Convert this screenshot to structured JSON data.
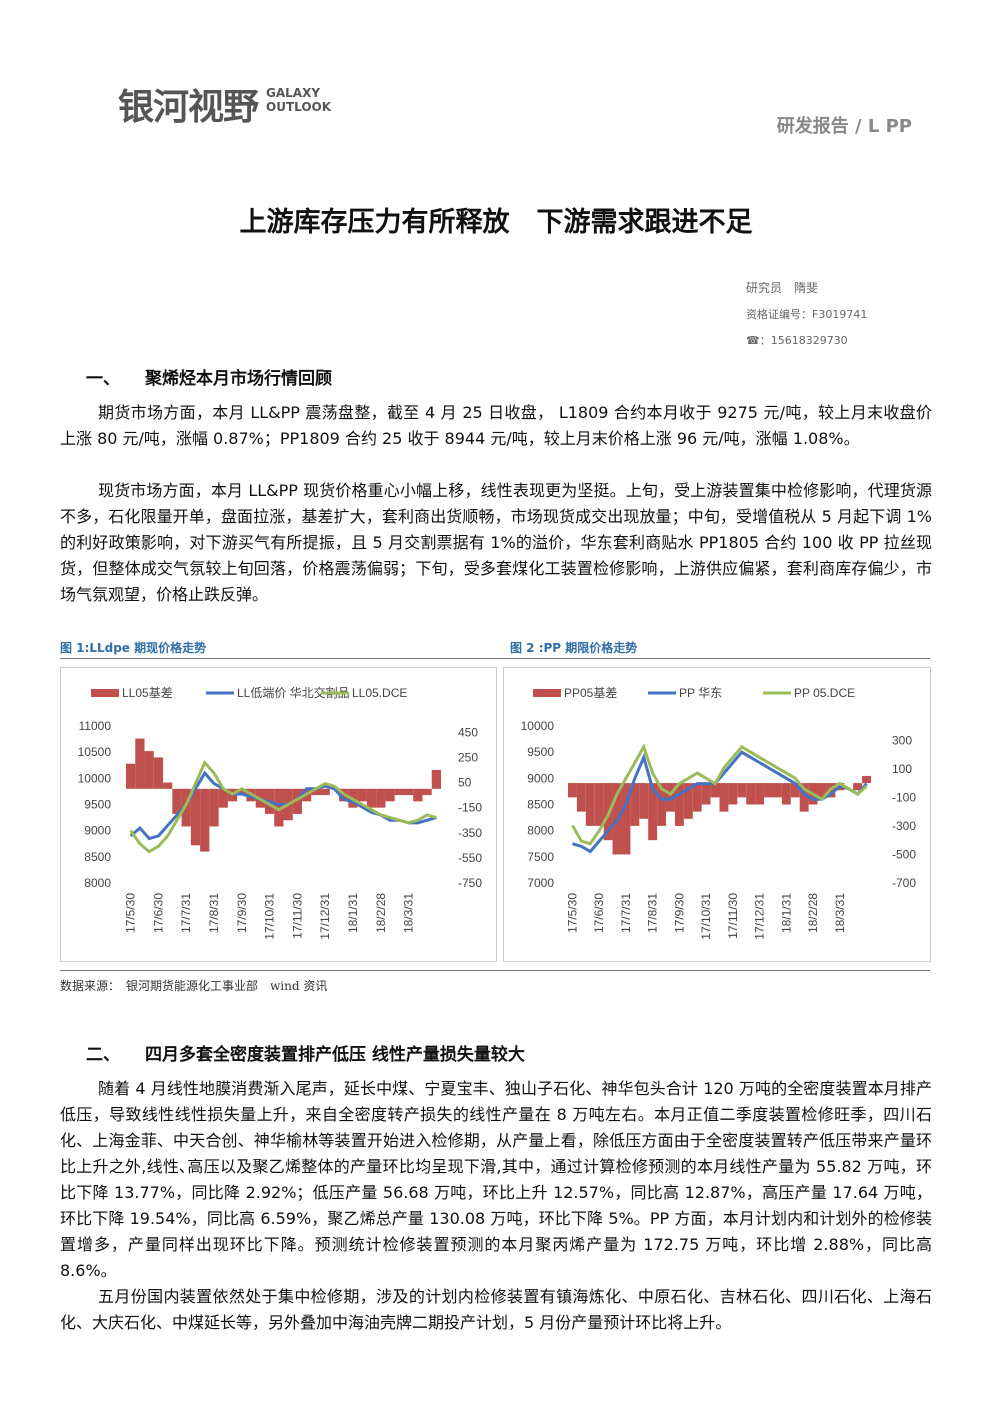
{
  "header": {
    "logo": "银河视野",
    "logo_en_1": "GALAXY",
    "logo_en_2": "OUTLOOK",
    "report_type": "研发报告 / L PP"
  },
  "title": "上游库存压力有所释放　下游需求跟进不足",
  "author": {
    "name": "研究员　隋斐",
    "license": "资格证编号：F3019741",
    "phone": "☎：15618329730"
  },
  "section1": {
    "number": "一、",
    "heading": "聚烯烃本月市场行情回顾",
    "paragraphs": [
      "期货市场方面，本月 LL&PP 震荡盘整，截至 4 月 25 日收盘， L1809 合约本月收于 9275 元/吨，较上月末收盘价上涨 80 元/吨，涨幅 0.87%；PP1809 合约 25 收于 8944 元/吨，较上月末价格上涨 96 元/吨，涨幅 1.08%。",
      "现货市场方面，本月 LL&PP 现货价格重心小幅上移，线性表现更为坚挺。上旬，受上游装置集中检修影响，代理货源不多，石化限量开单，盘面拉涨，基差扩大，套利商出货顺畅，市场现货成交出现放量；中旬，受增值税从 5 月起下调 1%的利好政策影响，对下游买气有所提振，且 5 月交割票据有 1%的溢价，华东套利商贴水 PP1805 合约 100 收 PP 拉丝现货，但整体成交气氛较上旬回落，价格震荡偏弱；下旬，受多套煤化工装置检修影响，上游供应偏紧，套利商库存偏少，市场气氛观望，价格止跌反弹。"
    ]
  },
  "figure_captions": [
    "图 1:LLdpe 期现价格走势",
    "图 2 :PP 期限价格走势"
  ],
  "source": "数据来源：　银河期货能源化工事业部　wind 资讯",
  "section2": {
    "number": "二、",
    "heading": "四月多套全密度装置排产低压 线性产量损失量较大",
    "paragraphs": [
      "随着 4 月线性地膜消费渐入尾声，延长中煤、宁夏宝丰、独山子石化、神华包头合计 120 万吨的全密度装置本月排产低压，导致线性线性损失量上升，来自全密度转产损失的线性产量在 8 万吨左右。本月正值二季度装置检修旺季，四川石化、上海金菲、中天合创、神华榆林等装置开始进入检修期，从产量上看，除低压方面由于全密度装置转产低压带来产量环比上升之外,线性､高压以及聚乙烯整体的产量环比均呈现下滑,其中，通过计算检修预测的本月线性产量为 55.82 万吨，环比下降 13.77%，同比降 2.92%；低压产量 56.68 万吨，环比上升 12.57%，同比高 12.87%，高压产量 17.64 万吨，环比下降 19.54%，同比高 6.59%，聚乙烯总产量 130.08 万吨，环比下降 5%。PP 方面，本月计划内和计划外的检修装置增多，产量同样出现环比下降。预测统计检修装置预测的本月聚丙烯产量为 172.75 万吨，环比增 2.88%，同比高 8.6%。",
      "五月份国内装置依然处于集中检修期，涉及的计划内检修装置有镇海炼化、中原石化、吉林石化、四川石化、上海石化、大庆石化、中煤延长等，另外叠加中海油壳牌二期投产计划，5 月份产量预计环比将上升。"
    ]
  },
  "chart_data": [
    {
      "type": "bar-line",
      "categories": [
        "17/5/30",
        null,
        null,
        "17/6/30",
        null,
        null,
        "17/7/31",
        null,
        null,
        "17/8/31",
        null,
        null,
        "17/9/30",
        null,
        null,
        "17/10/31",
        null,
        null,
        "17/11/30",
        null,
        null,
        "17/12/31",
        null,
        null,
        "18/1/31",
        null,
        null,
        "18/2/28",
        null,
        null,
        "18/3/31",
        null,
        null,
        null
      ],
      "ylim": [
        8000,
        11000
      ],
      "yticks": [
        8000,
        8500,
        9000,
        9500,
        10000,
        10500,
        11000
      ],
      "y2lim": [
        -750,
        500
      ],
      "y2ticks": [
        -750,
        -550,
        -350,
        -150,
        50,
        250,
        450
      ],
      "series": [
        {
          "name": "LL05基差",
          "color": "#c0504d",
          "kind": "bar",
          "axis": "y2",
          "values": [
            200,
            400,
            300,
            250,
            50,
            -200,
            -300,
            -450,
            -500,
            -300,
            -150,
            -100,
            -50,
            -100,
            -150,
            -200,
            -300,
            -250,
            -200,
            -100,
            -50,
            -50,
            0,
            -100,
            -150,
            -100,
            -150,
            -150,
            -100,
            -50,
            -50,
            -100,
            -50,
            150
          ]
        },
        {
          "name": "LL低端价 华北交割品",
          "color": "#4472c4",
          "kind": "line",
          "values": [
            8900,
            9050,
            8850,
            8900,
            9100,
            9300,
            9500,
            9800,
            10100,
            9900,
            9800,
            9700,
            9700,
            9650,
            9600,
            9550,
            9500,
            9500,
            9600,
            9800,
            9800,
            9850,
            9800,
            9600,
            9550,
            9450,
            9350,
            9300,
            9200,
            9200,
            9150,
            9150,
            9200,
            9250
          ]
        },
        {
          "name": "LL05.DCE",
          "color": "#9bbb59",
          "kind": "line",
          "values": [
            9000,
            8750,
            8600,
            8700,
            8900,
            9200,
            9500,
            9900,
            10300,
            10100,
            9800,
            9700,
            9800,
            9700,
            9600,
            9500,
            9400,
            9500,
            9600,
            9700,
            9800,
            9900,
            9850,
            9700,
            9600,
            9500,
            9400,
            9300,
            9250,
            9200,
            9150,
            9200,
            9300,
            9250
          ]
        }
      ]
    },
    {
      "type": "bar-line",
      "categories": [
        "17/5/30",
        null,
        null,
        "17/6/30",
        null,
        null,
        "17/7/31",
        null,
        null,
        "17/8/31",
        null,
        null,
        "17/9/30",
        null,
        null,
        "17/10/31",
        null,
        null,
        "17/11/30",
        null,
        null,
        "17/12/31",
        null,
        null,
        "18/1/31",
        null,
        null,
        "18/2/28",
        null,
        null,
        "18/3/31",
        null,
        null,
        null
      ],
      "ylim": [
        7000,
        10000
      ],
      "yticks": [
        7000,
        7500,
        8000,
        8500,
        9000,
        9500,
        10000
      ],
      "y2lim": [
        -700,
        400
      ],
      "y2ticks": [
        -700,
        -500,
        -300,
        -100,
        100,
        300
      ],
      "series": [
        {
          "name": "PP05基差",
          "color": "#c0504d",
          "kind": "bar",
          "axis": "y2",
          "values": [
            -100,
            -200,
            -300,
            -300,
            -400,
            -500,
            -500,
            -300,
            -250,
            -400,
            -300,
            -200,
            -300,
            -250,
            -200,
            -150,
            -100,
            -200,
            -150,
            -100,
            -150,
            -150,
            -100,
            -100,
            -150,
            -100,
            -200,
            -150,
            -100,
            -100,
            -50,
            0,
            -50,
            50
          ]
        },
        {
          "name": "PP 华东",
          "color": "#4472c4",
          "kind": "line",
          "values": [
            7750,
            7700,
            7600,
            7800,
            8000,
            8200,
            8500,
            9000,
            9400,
            8800,
            8600,
            8600,
            8700,
            8800,
            8900,
            8900,
            8900,
            9100,
            9300,
            9500,
            9400,
            9300,
            9200,
            9100,
            9000,
            8900,
            8700,
            8600,
            8600,
            8700,
            8850,
            8800,
            8700,
            8900
          ]
        },
        {
          "name": "PP 05.DCE",
          "color": "#9bbb59",
          "kind": "line",
          "values": [
            8100,
            7800,
            7750,
            8000,
            8300,
            8700,
            9000,
            9300,
            9600,
            9100,
            8800,
            8700,
            8900,
            9000,
            9100,
            9000,
            8900,
            9200,
            9400,
            9600,
            9500,
            9400,
            9300,
            9200,
            9100,
            9000,
            8800,
            8700,
            8600,
            8800,
            8900,
            8800,
            8700,
            8850
          ]
        }
      ]
    }
  ]
}
